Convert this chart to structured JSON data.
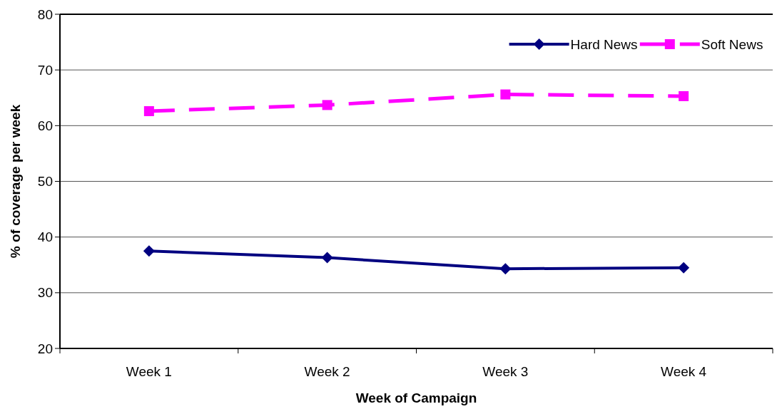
{
  "chart_data": {
    "type": "line",
    "xlabel": "Week of Campaign",
    "ylabel": "% of coverage per week",
    "categories": [
      "Week 1",
      "Week 2",
      "Week 3",
      "Week 4"
    ],
    "series": [
      {
        "name": "Hard News",
        "color": "#000080",
        "values": [
          37.5,
          36.3,
          34.3,
          34.5
        ],
        "marker": "diamond",
        "line_style": "solid"
      },
      {
        "name": "Soft News",
        "color": "#ff00ff",
        "values": [
          62.6,
          63.7,
          65.6,
          65.3
        ],
        "marker": "square",
        "line_style": "dashed"
      }
    ],
    "ylim": [
      20,
      80
    ],
    "yticks": [
      20,
      30,
      40,
      50,
      60,
      70,
      80
    ],
    "grid": "y",
    "legend": "top right"
  }
}
